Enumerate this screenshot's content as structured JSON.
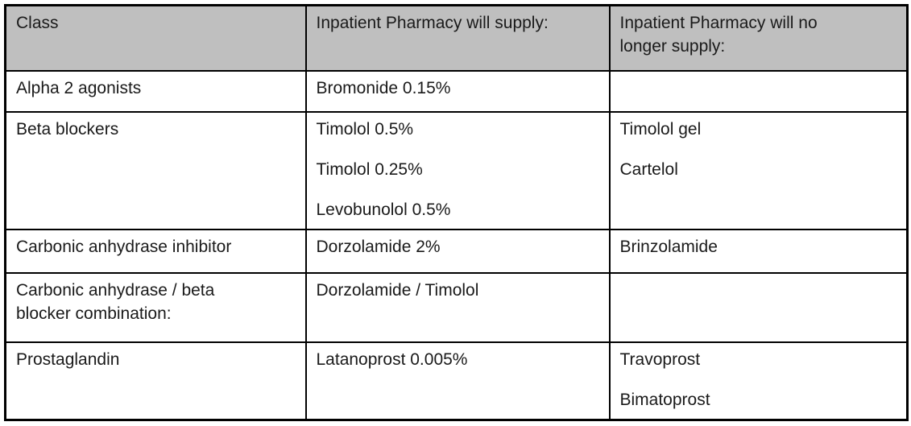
{
  "table": {
    "headers": {
      "class": "Class",
      "supply": "Inpatient Pharmacy will supply:",
      "no_longer": "Inpatient Pharmacy will no longer supply:"
    },
    "rows": [
      {
        "class": "Alpha 2 agonists",
        "supply": [
          "Bromonide 0.15%"
        ],
        "no_longer": []
      },
      {
        "class": "Beta blockers",
        "supply": [
          "Timolol 0.5%",
          "Timolol 0.25%",
          "Levobunolol 0.5%"
        ],
        "no_longer": [
          "Timolol gel",
          "Cartelol"
        ]
      },
      {
        "class": "Carbonic anhydrase inhibitor",
        "supply": [
          "Dorzolamide 2%"
        ],
        "no_longer": [
          "Brinzolamide"
        ]
      },
      {
        "class": "Carbonic anhydrase / beta blocker combination:",
        "supply": [
          "Dorzolamide / Timolol"
        ],
        "no_longer": []
      },
      {
        "class": "Prostaglandin",
        "supply": [
          "Latanoprost 0.005%"
        ],
        "no_longer": [
          "Travoprost",
          "Bimatoprost"
        ]
      }
    ],
    "colors": {
      "header_bg": "#bfbfbf",
      "border": "#000000",
      "text": "#1a1a1a"
    }
  }
}
